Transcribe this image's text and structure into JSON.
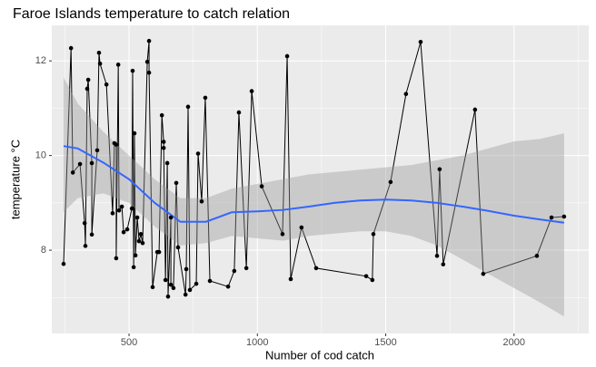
{
  "chart_data": {
    "type": "line",
    "title": "Faroe Islands temperature to catch relation",
    "x_label": "Number of cod catch",
    "y_label": "temperature °C",
    "xlim": [
      199,
      2291
    ],
    "ylim": [
      6.24,
      12.75
    ],
    "xticks": [
      500,
      1000,
      1500,
      2000
    ],
    "yticks": [
      8,
      10,
      12
    ],
    "xminor": [
      250,
      750,
      1250,
      1750,
      2250
    ],
    "yminor": [
      7,
      9,
      11
    ],
    "grid": true,
    "color": "#000000",
    "panel_color": "#ebebeb",
    "x": [
      245,
      274,
      281,
      309,
      327,
      330,
      337,
      341,
      355,
      355,
      376,
      383,
      387,
      412,
      436,
      443,
      450,
      450,
      458,
      461,
      472,
      479,
      493,
      511,
      514,
      518,
      521,
      525,
      532,
      539,
      546,
      553,
      571,
      578,
      578,
      592,
      610,
      617,
      628,
      635,
      635,
      642,
      649,
      652,
      663,
      663,
      673,
      684,
      691,
      720,
      723,
      730,
      737,
      762,
      769,
      783,
      797,
      815,
      886,
      910,
      928,
      957,
      978,
      1017,
      1098,
      1116,
      1130,
      1172,
      1229,
      1424,
      1448,
      1452,
      1519,
      1579,
      1636,
      1700,
      1710,
      1724,
      1848,
      1880,
      2089,
      2146,
      2195
    ],
    "values": [
      7.71,
      12.27,
      9.64,
      9.82,
      8.57,
      8.09,
      11.41,
      11.6,
      9.84,
      8.33,
      10.11,
      12.17,
      11.94,
      11.5,
      8.78,
      10.26,
      10.23,
      7.83,
      11.92,
      8.84,
      8.92,
      8.38,
      8.44,
      8.88,
      11.79,
      7.64,
      10.47,
      7.89,
      8.69,
      8.19,
      8.34,
      8.15,
      11.98,
      12.42,
      11.75,
      7.22,
      7.96,
      7.96,
      10.85,
      10.29,
      10.16,
      7.37,
      9.84,
      7.02,
      8.69,
      7.27,
      7.2,
      9.42,
      8.06,
      7.06,
      7.6,
      11.03,
      7.16,
      7.29,
      10.04,
      9.03,
      11.22,
      7.35,
      7.23,
      7.56,
      10.91,
      7.62,
      11.36,
      9.35,
      8.34,
      12.1,
      7.39,
      8.48,
      7.62,
      7.45,
      7.37,
      8.34,
      9.44,
      11.3,
      12.4,
      7.88,
      9.71,
      7.7,
      10.97,
      7.5,
      7.88,
      8.69,
      8.71
    ],
    "smooth": {
      "color": "#3366ff",
      "band_color": "#999999",
      "x": [
        245,
        300,
        400,
        500,
        600,
        700,
        800,
        900,
        1000,
        1100,
        1200,
        1300,
        1400,
        1500,
        1600,
        1700,
        1800,
        1900,
        2000,
        2100,
        2195
      ],
      "y": [
        10.2,
        10.15,
        9.85,
        9.5,
        9.0,
        8.6,
        8.6,
        8.8,
        8.82,
        8.85,
        8.92,
        9.0,
        9.05,
        9.07,
        9.05,
        9.0,
        8.92,
        8.83,
        8.73,
        8.65,
        8.58
      ],
      "ymin": [
        8.8,
        9.1,
        9.2,
        9.0,
        8.5,
        8.1,
        8.15,
        8.3,
        8.25,
        8.2,
        8.3,
        8.35,
        8.4,
        8.4,
        8.3,
        8.1,
        7.8,
        7.5,
        7.2,
        6.9,
        6.6
      ],
      "ymax": [
        11.65,
        11.1,
        10.5,
        10.0,
        9.5,
        9.1,
        9.1,
        9.3,
        9.4,
        9.5,
        9.6,
        9.65,
        9.7,
        9.75,
        9.8,
        9.9,
        10.0,
        10.15,
        10.3,
        10.35,
        10.47
      ]
    }
  }
}
